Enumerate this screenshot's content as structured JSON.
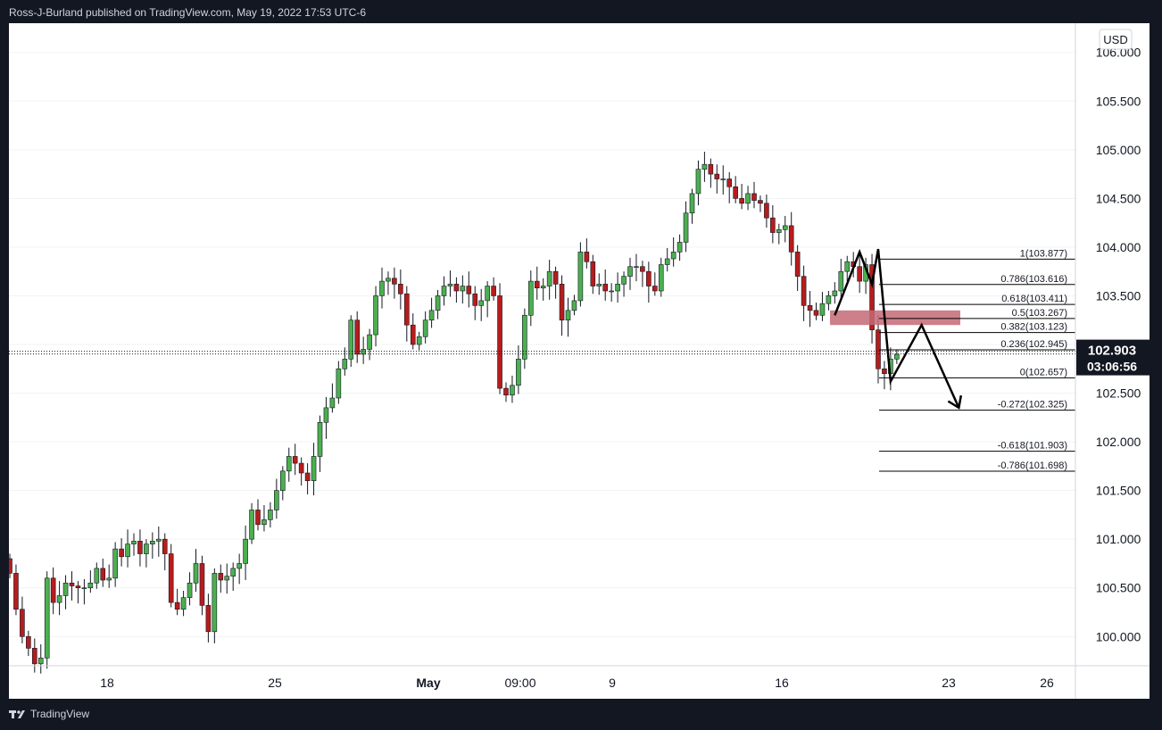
{
  "header": {
    "text": "Ross-J-Burland published on TradingView.com, May 19, 2022 17:53 UTC-6"
  },
  "footer": {
    "brand": "TradingView",
    "logo_icon": "tradingview-logo-icon"
  },
  "currency_label": "USD",
  "current_price": {
    "value": "102.903",
    "countdown": "03:06:56"
  },
  "colors": {
    "up": "#26a69a",
    "up_fill": "#4caf50",
    "down": "#b71c1c",
    "zone": "#c46a75",
    "price_badge": "#131722"
  },
  "chart_data": {
    "type": "candlestick",
    "y_axis": {
      "min": 99.7,
      "max": 106.3,
      "ticks": [
        "100.000",
        "100.500",
        "101.000",
        "101.500",
        "102.000",
        "102.500",
        "103.000",
        "103.500",
        "104.000",
        "104.500",
        "105.000",
        "105.500",
        "106.000"
      ]
    },
    "x_ticks": [
      {
        "label": "18",
        "bold": false
      },
      {
        "label": "25",
        "bold": false
      },
      {
        "label": "May",
        "bold": true
      },
      {
        "label": "09:00",
        "bold": false
      },
      {
        "label": "9",
        "bold": false
      },
      {
        "label": "16",
        "bold": false
      },
      {
        "label": "23",
        "bold": false
      },
      {
        "label": "26",
        "bold": false
      }
    ],
    "closes": [
      100.65,
      100.28,
      100.0,
      99.88,
      99.72,
      99.78,
      100.6,
      100.35,
      100.42,
      100.55,
      100.52,
      100.5,
      100.5,
      100.55,
      100.7,
      100.58,
      100.6,
      100.9,
      100.82,
      100.95,
      100.98,
      100.85,
      100.95,
      100.98,
      101.0,
      100.85,
      100.35,
      100.28,
      100.4,
      100.55,
      100.75,
      100.32,
      100.05,
      100.65,
      100.58,
      100.62,
      100.7,
      100.75,
      101.0,
      101.3,
      101.15,
      101.2,
      101.3,
      101.5,
      101.7,
      101.85,
      101.78,
      101.68,
      101.6,
      101.85,
      102.2,
      102.35,
      102.45,
      102.75,
      102.85,
      103.25,
      102.9,
      102.95,
      103.1,
      103.5,
      103.65,
      103.68,
      103.62,
      103.52,
      103.2,
      103.0,
      103.08,
      103.25,
      103.35,
      103.5,
      103.6,
      103.62,
      103.55,
      103.6,
      103.52,
      103.4,
      103.45,
      103.6,
      103.5,
      102.55,
      102.48,
      102.58,
      102.85,
      103.3,
      103.65,
      103.58,
      103.6,
      103.75,
      103.62,
      103.25,
      103.35,
      103.45,
      103.95,
      103.85,
      103.6,
      103.62,
      103.55,
      103.55,
      103.62,
      103.7,
      103.8,
      103.8,
      103.75,
      103.6,
      103.55,
      103.82,
      103.88,
      103.95,
      104.05,
      104.35,
      104.55,
      104.8,
      104.85,
      104.75,
      104.7,
      104.7,
      104.62,
      104.5,
      104.45,
      104.55,
      104.48,
      104.45,
      104.3,
      104.15,
      104.18,
      104.22,
      103.95,
      103.7,
      103.4,
      103.35,
      103.3,
      103.42,
      103.5,
      103.55,
      103.75,
      103.85,
      103.8,
      103.65,
      103.82,
      103.15,
      102.75,
      102.7,
      102.85,
      102.9
    ],
    "fibonacci": [
      {
        "label": "1(103.877)",
        "level": 103.877
      },
      {
        "label": "0.786(103.616)",
        "level": 103.616
      },
      {
        "label": "0.618(103.411)",
        "level": 103.411
      },
      {
        "label": "0.5(103.267)",
        "level": 103.267
      },
      {
        "label": "0.382(103.123)",
        "level": 103.123
      },
      {
        "label": "0.236(102.945)",
        "level": 102.945
      },
      {
        "label": "0(102.657)",
        "level": 102.657
      },
      {
        "label": "-0.272(102.325)",
        "level": 102.325
      },
      {
        "label": "-0.618(101.903)",
        "level": 101.903
      },
      {
        "label": "-0.786(101.698)",
        "level": 101.698
      }
    ],
    "zone": {
      "low": 103.2,
      "high": 103.35
    },
    "projection_path": [
      {
        "idx": 133,
        "price": 103.3
      },
      {
        "idx": 137,
        "price": 103.95
      },
      {
        "idx": 139,
        "price": 103.62
      },
      {
        "idx": 140,
        "price": 103.98
      },
      {
        "idx": 142,
        "price": 102.62
      },
      {
        "idx": 147,
        "price": 103.2
      },
      {
        "idx": 153,
        "price": 102.35
      }
    ],
    "current_price_level": 102.903
  }
}
